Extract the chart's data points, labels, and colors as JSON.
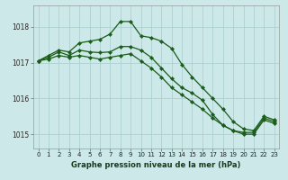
{
  "title": "Graphe pression niveau de la mer (hPa)",
  "background_color": "#cce8e8",
  "grid_color": "#a8cccc",
  "line_color": "#1a5c1a",
  "marker_color": "#1a5c1a",
  "xlim": [
    -0.5,
    23.5
  ],
  "ylim": [
    1014.6,
    1018.6
  ],
  "yticks": [
    1015,
    1016,
    1017,
    1018
  ],
  "xticks": [
    0,
    1,
    2,
    3,
    4,
    5,
    6,
    7,
    8,
    9,
    10,
    11,
    12,
    13,
    14,
    15,
    16,
    17,
    18,
    19,
    20,
    21,
    22,
    23
  ],
  "line1_x": [
    0,
    1,
    2,
    3,
    4,
    5,
    6,
    7,
    8,
    9,
    10,
    11,
    12,
    13,
    14,
    15,
    16,
    17,
    18,
    19,
    20,
    21,
    22,
    23
  ],
  "line1_y": [
    1017.05,
    1017.2,
    1017.35,
    1017.3,
    1017.55,
    1017.6,
    1017.65,
    1017.8,
    1018.15,
    1018.15,
    1017.75,
    1017.7,
    1017.6,
    1017.4,
    1016.95,
    1016.6,
    1016.3,
    1016.0,
    1015.7,
    1015.35,
    1015.15,
    1015.1,
    1015.5,
    1015.4
  ],
  "line2_x": [
    0,
    1,
    2,
    3,
    4,
    5,
    6,
    7,
    8,
    9,
    10,
    11,
    12,
    13,
    14,
    15,
    16,
    17,
    18,
    19,
    20,
    21,
    22,
    23
  ],
  "line2_y": [
    1017.05,
    1017.15,
    1017.3,
    1017.2,
    1017.35,
    1017.3,
    1017.28,
    1017.3,
    1017.45,
    1017.45,
    1017.35,
    1017.15,
    1016.85,
    1016.55,
    1016.3,
    1016.15,
    1015.95,
    1015.55,
    1015.25,
    1015.1,
    1015.05,
    1015.05,
    1015.45,
    1015.35
  ],
  "line3_x": [
    0,
    1,
    2,
    3,
    4,
    5,
    6,
    7,
    8,
    9,
    10,
    11,
    12,
    13,
    14,
    15,
    16,
    17,
    18,
    19,
    20,
    21,
    22,
    23
  ],
  "line3_y": [
    1017.05,
    1017.1,
    1017.2,
    1017.15,
    1017.2,
    1017.15,
    1017.1,
    1017.15,
    1017.2,
    1017.25,
    1017.05,
    1016.85,
    1016.6,
    1016.3,
    1016.1,
    1015.9,
    1015.7,
    1015.45,
    1015.25,
    1015.1,
    1015.0,
    1015.0,
    1015.4,
    1015.3
  ]
}
